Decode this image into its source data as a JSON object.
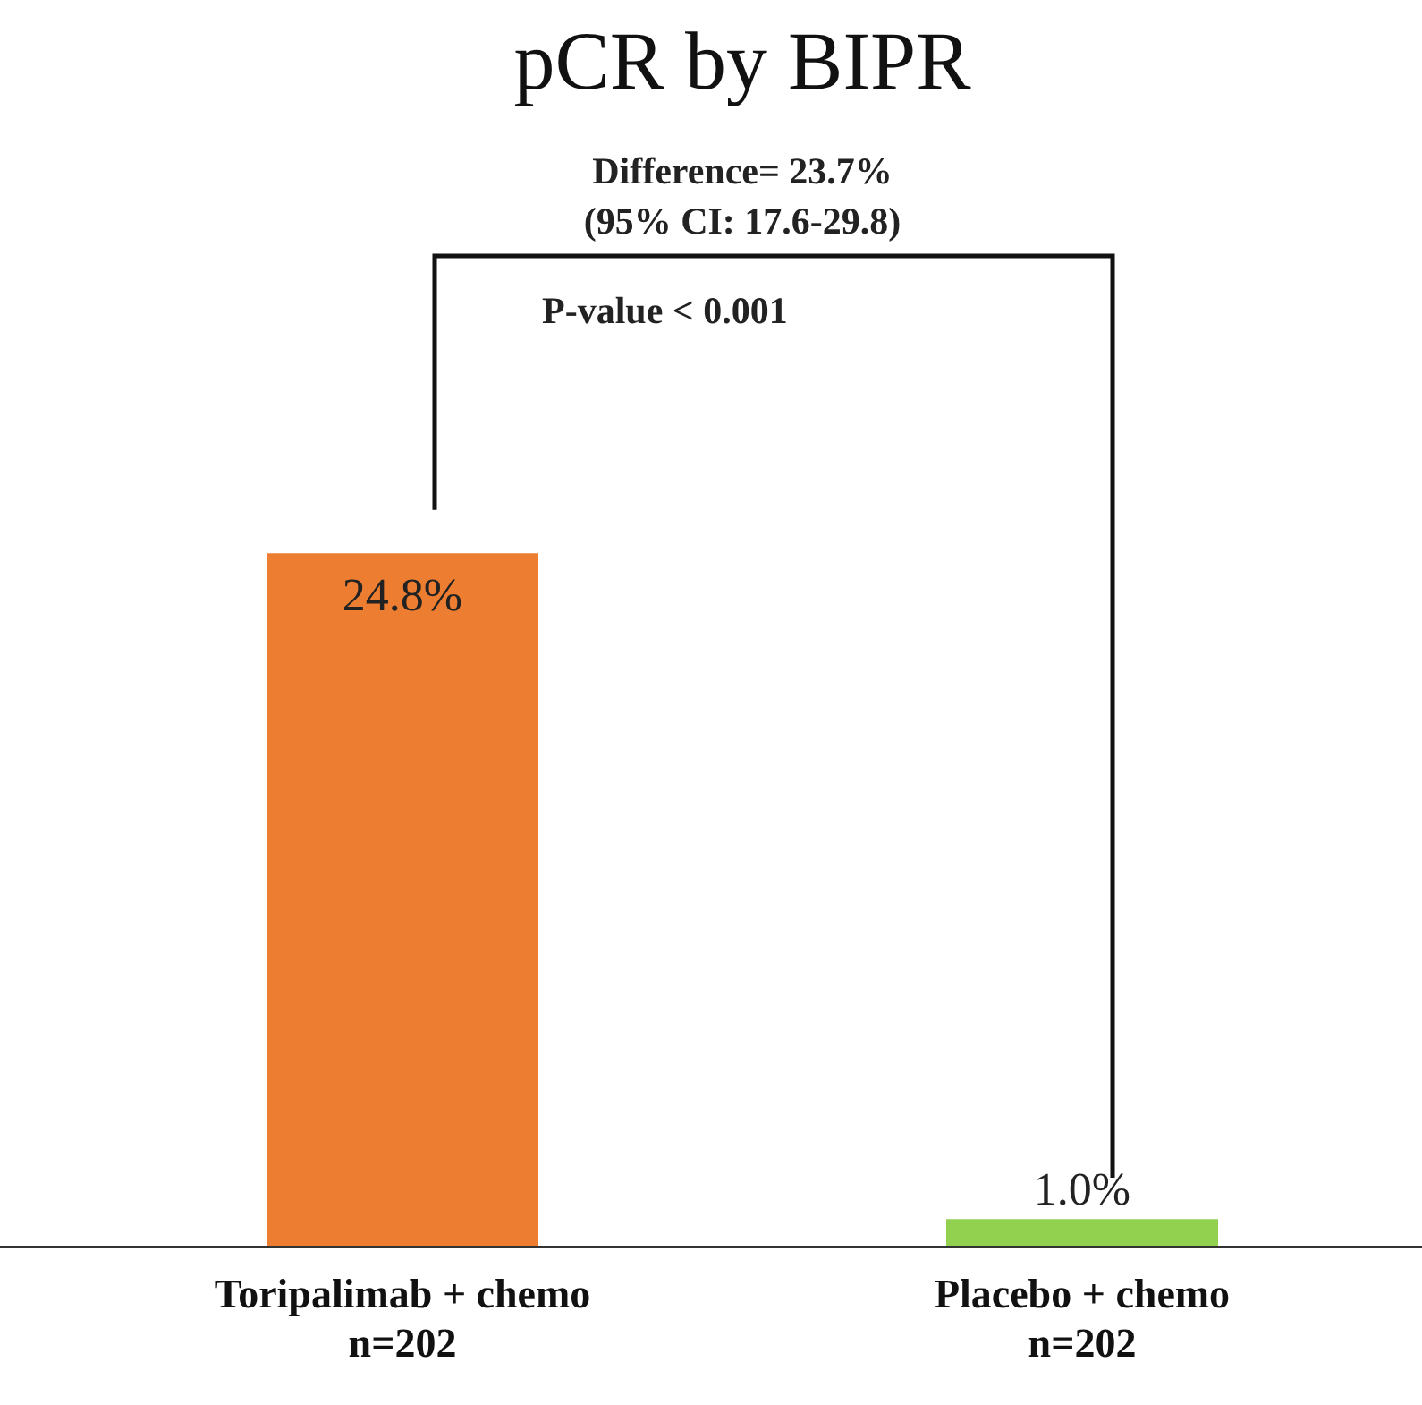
{
  "chart_data": {
    "type": "bar",
    "title": "pCR by BIPR",
    "categories": [
      "Toripalimab + chemo\nn=202",
      "Placebo + chemo\nn=202"
    ],
    "values": [
      24.8,
      1.0
    ],
    "colors": [
      "#ed7d31",
      "#92d050"
    ],
    "value_labels": [
      "24.8%",
      "1.0%"
    ],
    "annotations": [
      "Difference= 23.7%",
      "(95% CI: 17.6-29.8)",
      "P-value < 0.001"
    ],
    "grid": false,
    "legend": false
  }
}
